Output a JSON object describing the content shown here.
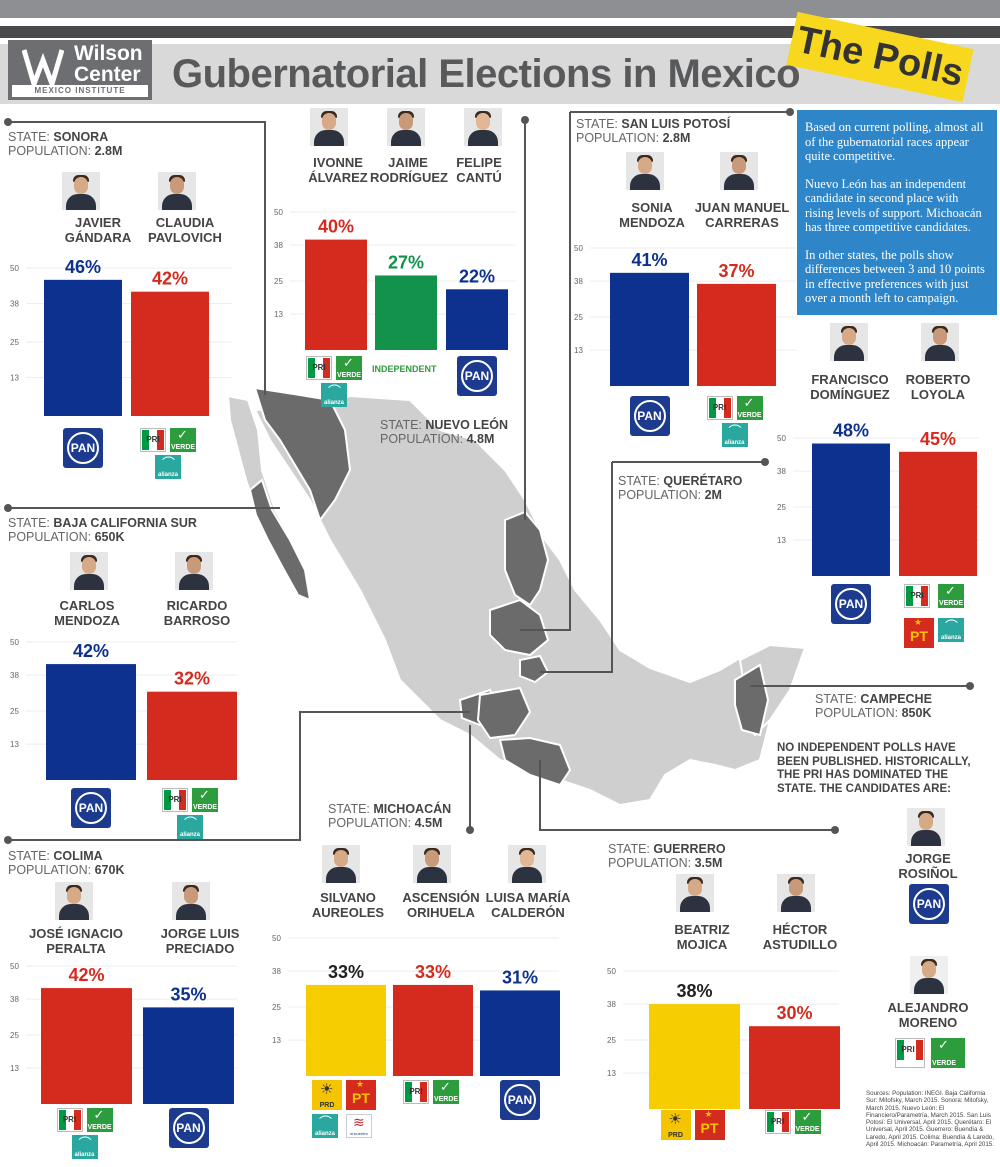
{
  "header": {
    "logo_name_line1": "Wilson",
    "logo_name_line2": "Center",
    "logo_subtitle": "MEXICO INSTITUTE",
    "title": "Gubernatorial Elections in Mexico",
    "badge": "The Polls"
  },
  "info": {
    "p1": "Based on current polling, almost all of the gubernatorial races appear quite competitive.",
    "p2": "Nuevo León has an independent candidate in second place with rising levels of support. Michoacán has three competitive candidates.",
    "p3": "In other states, the polls show differences between 3 and 10 points in effective preferences with just over a month left to campaign."
  },
  "labels": {
    "state": "STATE:",
    "population": "POPULATION:",
    "independent": "INDEPENDENT"
  },
  "parties": {
    "pan": "PAN",
    "pri": "PRI",
    "verde": "VERDE",
    "alianza": "alianza",
    "prd": "PRD",
    "pt": "PT",
    "encuentro": "encuentro"
  },
  "colors": {
    "pan": "#0d318f",
    "pri": "#d52b1e",
    "independent": "#12924b",
    "prd": "#f5cd00",
    "info_box": "#2e86c8",
    "badge": "#f7d81f",
    "map_state": "#cfcfcf",
    "map_highlight": "#6b6b6b"
  },
  "chart_data": [
    {
      "type": "bar",
      "state": "SONORA",
      "population": "2.8M",
      "ylim": [
        0,
        50
      ],
      "yticks": [
        13,
        25,
        38,
        50
      ],
      "categories": [
        "JAVIER GÁNDARA",
        "CLAUDIA PAVLOVICH"
      ],
      "values": [
        46,
        42
      ],
      "labels": [
        "46%",
        "42%"
      ],
      "colors": [
        "#0d318f",
        "#d52b1e"
      ],
      "parties": [
        [
          "pan"
        ],
        [
          "pri",
          "verde",
          "alianza"
        ]
      ]
    },
    {
      "type": "bar",
      "state": "NUEVO LEÓN",
      "population": "4.8M",
      "ylim": [
        0,
        50
      ],
      "yticks": [
        13,
        25,
        38,
        50
      ],
      "categories": [
        "IVONNE ÁLVAREZ",
        "JAIME RODRÍGUEZ",
        "FELIPE CANTÚ"
      ],
      "values": [
        40,
        27,
        22
      ],
      "labels": [
        "40%",
        "27%",
        "22%"
      ],
      "colors": [
        "#d52b1e",
        "#12924b",
        "#0d318f"
      ],
      "parties": [
        [
          "pri",
          "verde",
          "alianza"
        ],
        [
          "independent"
        ],
        [
          "pan"
        ]
      ]
    },
    {
      "type": "bar",
      "state": "SAN LUIS POTOSÍ",
      "population": "2.8M",
      "ylim": [
        0,
        50
      ],
      "yticks": [
        13,
        25,
        38,
        50
      ],
      "categories": [
        "SONIA MENDOZA",
        "JUAN MANUEL CARRERAS"
      ],
      "values": [
        41,
        37
      ],
      "labels": [
        "41%",
        "37%"
      ],
      "colors": [
        "#0d318f",
        "#d52b1e"
      ],
      "parties": [
        [
          "pan"
        ],
        [
          "pri",
          "verde",
          "alianza"
        ]
      ]
    },
    {
      "type": "bar",
      "state": "QUERÉTARO",
      "population": "2M",
      "ylim": [
        0,
        50
      ],
      "yticks": [
        13,
        25,
        38,
        50
      ],
      "categories": [
        "FRANCISCO DOMÍNGUEZ",
        "ROBERTO LOYOLA"
      ],
      "values": [
        48,
        45
      ],
      "labels": [
        "48%",
        "45%"
      ],
      "colors": [
        "#0d318f",
        "#d52b1e"
      ],
      "parties": [
        [
          "pan"
        ],
        [
          "pri",
          "verde",
          "pt",
          "alianza"
        ]
      ]
    },
    {
      "type": "bar",
      "state": "BAJA CALIFORNIA SUR",
      "population": "650K",
      "ylim": [
        0,
        50
      ],
      "yticks": [
        13,
        25,
        38,
        50
      ],
      "categories": [
        "CARLOS MENDOZA",
        "RICARDO BARROSO"
      ],
      "values": [
        42,
        32
      ],
      "labels": [
        "42%",
        "32%"
      ],
      "colors": [
        "#0d318f",
        "#d52b1e"
      ],
      "parties": [
        [
          "pan"
        ],
        [
          "pri",
          "verde",
          "alianza"
        ]
      ]
    },
    {
      "type": "bar",
      "state": "COLIMA",
      "population": "670K",
      "ylim": [
        0,
        50
      ],
      "yticks": [
        13,
        25,
        38,
        50
      ],
      "categories": [
        "JOSÉ IGNACIO PERALTA",
        "JORGE LUIS PRECIADO"
      ],
      "values": [
        42,
        35
      ],
      "labels": [
        "42%",
        "35%"
      ],
      "colors": [
        "#d52b1e",
        "#0d318f"
      ],
      "parties": [
        [
          "pri",
          "verde",
          "alianza"
        ],
        [
          "pan"
        ]
      ]
    },
    {
      "type": "bar",
      "state": "MICHOACÁN",
      "population": "4.5M",
      "ylim": [
        0,
        50
      ],
      "yticks": [
        13,
        25,
        38,
        50
      ],
      "categories": [
        "SILVANO AUREOLES",
        "ASCENSIÓN ORIHUELA",
        "LUISA MARÍA CALDERÓN"
      ],
      "values": [
        33,
        33,
        31
      ],
      "labels": [
        "33%",
        "33%",
        "31%"
      ],
      "colors": [
        "#f5cd00",
        "#d52b1e",
        "#0d318f"
      ],
      "parties": [
        [
          "prd",
          "pt",
          "alianza",
          "encuentro"
        ],
        [
          "pri",
          "verde"
        ],
        [
          "pan"
        ]
      ]
    },
    {
      "type": "bar",
      "state": "GUERRERO",
      "population": "3.5M",
      "ylim": [
        0,
        50
      ],
      "yticks": [
        13,
        25,
        38,
        50
      ],
      "categories": [
        "BEATRIZ MOJICA",
        "HÉCTOR ASTUDILLO"
      ],
      "values": [
        38,
        30
      ],
      "labels": [
        "38%",
        "30%"
      ],
      "colors": [
        "#f5cd00",
        "#d52b1e"
      ],
      "parties": [
        [
          "prd",
          "pt"
        ],
        [
          "pri",
          "verde"
        ]
      ]
    }
  ],
  "campeche": {
    "state": "CAMPECHE",
    "population": "850K",
    "note": "NO INDEPENDENT POLLS HAVE BEEN PUBLISHED. HISTORICALLY, THE PRI HAS DOMINATED THE STATE. THE CANDIDATES ARE:",
    "cand1": "JORGE ROSIÑOL",
    "cand2": "ALEJANDRO MORENO"
  },
  "sources": "Sources: Population: INEGI. Baja California Sur: Mitofsky, March 2015. Sonora: Mitofsky, March 2015. Nuevo León: El Financiero/Parametría, March 2015. San Luis Potosí: El Universal, April 2015. Querétaro: El Universal, April 2015. Guerrero: Buendía & Laredo, April 2015. Colima: Buendía & Laredo, April 2015. Michoacán: Parametría, April 2015."
}
